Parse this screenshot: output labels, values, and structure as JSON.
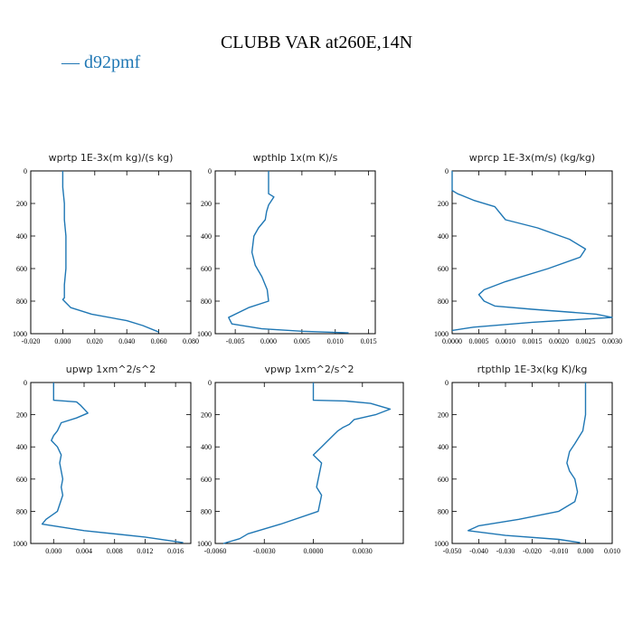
{
  "title": "CLUBB VAR at260E,14N",
  "legend": {
    "label": "d92pmf",
    "color": "#1f77b4"
  },
  "chart_data": [
    {
      "type": "line",
      "title": "wprtp   1E-3x(m kg)/(s kg)",
      "xlim": [
        -0.02,
        0.08
      ],
      "ylim": [
        1000,
        0
      ],
      "xticks": [
        -0.02,
        0.0,
        0.02,
        0.04,
        0.06,
        0.08
      ],
      "xtick_labels": [
        "-0.020",
        "0.000",
        "0.020",
        "0.040",
        "0.060",
        "0.080"
      ],
      "yticks": [
        0,
        200,
        400,
        600,
        800,
        1000
      ],
      "ytick_labels": [
        "0",
        "200",
        "400",
        "600",
        "800",
        "1000"
      ],
      "series": [
        {
          "color": "#1f77b4",
          "x": [
            0.0,
            0.0,
            0.001,
            0.001,
            0.002,
            0.002,
            0.002,
            0.001,
            0.001,
            0.0,
            0.005,
            0.018,
            0.04,
            0.05,
            0.06
          ],
          "y": [
            0,
            100,
            200,
            300,
            400,
            500,
            600,
            700,
            780,
            790,
            840,
            880,
            920,
            950,
            990
          ]
        }
      ]
    },
    {
      "type": "line",
      "title": "wpthlp   1x(m K)/s",
      "xlim": [
        -0.008,
        0.016
      ],
      "ylim": [
        1000,
        0
      ],
      "xticks": [
        -0.005,
        0.0,
        0.005,
        0.01,
        0.015
      ],
      "xtick_labels": [
        "-0.005",
        "0.000",
        "0.005",
        "0.010",
        "0.015"
      ],
      "yticks": [
        0,
        200,
        400,
        600,
        800,
        1000
      ],
      "ytick_labels": [
        "0",
        "200",
        "400",
        "600",
        "800",
        "1000"
      ],
      "series": [
        {
          "color": "#1f77b4",
          "x": [
            0.0,
            0.0,
            0.0008,
            0.0,
            -0.0003,
            -0.0005,
            -0.0015,
            -0.0022,
            -0.0025,
            -0.002,
            -0.001,
            -0.0002,
            0.0,
            -0.003,
            -0.006,
            -0.0055,
            -0.001,
            0.005,
            0.012
          ],
          "y": [
            0,
            140,
            160,
            210,
            250,
            300,
            350,
            400,
            500,
            580,
            650,
            730,
            800,
            840,
            900,
            940,
            970,
            985,
            995
          ]
        }
      ]
    },
    {
      "type": "line",
      "title": "wprcp   1E-3x(m/s) (kg/kg)",
      "xlim": [
        0.0,
        0.003
      ],
      "ylim": [
        1000,
        0
      ],
      "xticks": [
        0.0,
        0.0005,
        0.001,
        0.0015,
        0.002,
        0.0025,
        0.003
      ],
      "xtick_labels": [
        "0.0000",
        "0.0005",
        "0.0010",
        "0.0015",
        "0.0020",
        "0.0025",
        "0.0030"
      ],
      "yticks": [
        0,
        200,
        400,
        600,
        800,
        1000
      ],
      "ytick_labels": [
        "0",
        "200",
        "400",
        "600",
        "800",
        "1000"
      ],
      "series": [
        {
          "color": "#1f77b4",
          "x": [
            0.0,
            0.0,
            0.0001,
            0.0004,
            0.0008,
            0.001,
            0.0016,
            0.0022,
            0.0025,
            0.0024,
            0.0018,
            0.001,
            0.0006,
            0.0005,
            0.0006,
            0.0008,
            0.0015,
            0.0027,
            0.003,
            0.0015,
            0.0004,
            0.0
          ],
          "y": [
            0,
            120,
            140,
            180,
            220,
            300,
            350,
            420,
            480,
            530,
            600,
            680,
            730,
            760,
            800,
            830,
            850,
            880,
            900,
            930,
            960,
            980
          ]
        }
      ]
    },
    {
      "type": "line",
      "title": "upwp   1xm^2/s^2",
      "xlim": [
        -0.003,
        0.018
      ],
      "ylim": [
        1000,
        0
      ],
      "xticks": [
        0.0,
        0.004,
        0.008,
        0.012,
        0.016
      ],
      "xtick_labels": [
        "0.000",
        "0.004",
        "0.008",
        "0.012",
        "0.016"
      ],
      "yticks": [
        0,
        200,
        400,
        600,
        800,
        1000
      ],
      "ytick_labels": [
        "0",
        "200",
        "400",
        "600",
        "800",
        "1000"
      ],
      "series": [
        {
          "color": "#1f77b4",
          "x": [
            0.0,
            0.0,
            0.003,
            0.0035,
            0.0045,
            0.003,
            0.001,
            0.0005,
            0.0,
            -0.0003,
            0.0005,
            0.001,
            0.0008,
            0.0012,
            0.001,
            0.0012,
            0.0005,
            -0.001,
            -0.0015,
            0.004,
            0.012,
            0.017
          ],
          "y": [
            0,
            110,
            120,
            140,
            190,
            220,
            250,
            300,
            330,
            360,
            400,
            450,
            500,
            600,
            650,
            700,
            800,
            850,
            880,
            920,
            960,
            995
          ]
        }
      ]
    },
    {
      "type": "line",
      "title": "vpwp   1xm^2/s^2",
      "xlim": [
        -0.006,
        0.0055
      ],
      "ylim": [
        1000,
        0
      ],
      "xticks": [
        -0.006,
        -0.003,
        0.0,
        0.003
      ],
      "xtick_labels": [
        "-0.0060",
        "-0.0030",
        "0.0000",
        "0.0030"
      ],
      "yticks": [
        0,
        200,
        400,
        600,
        800,
        1000
      ],
      "ytick_labels": [
        "0",
        "200",
        "400",
        "600",
        "800",
        "1000"
      ],
      "series": [
        {
          "color": "#1f77b4",
          "x": [
            0.0,
            0.0,
            0.002,
            0.0035,
            0.0047,
            0.0038,
            0.0025,
            0.0022,
            0.0018,
            0.0015,
            0.0012,
            0.0005,
            0.0,
            0.0005,
            0.0003,
            0.0002,
            0.0005,
            0.0003,
            -0.002,
            -0.004,
            -0.0045,
            -0.0055
          ],
          "y": [
            0,
            110,
            115,
            130,
            165,
            200,
            230,
            260,
            280,
            300,
            330,
            400,
            450,
            500,
            600,
            650,
            700,
            800,
            880,
            940,
            970,
            1000
          ]
        }
      ]
    },
    {
      "type": "line",
      "title": "rtpthlp   1E-3x(kg K)/kg",
      "xlim": [
        -0.05,
        0.01
      ],
      "ylim": [
        1000,
        0
      ],
      "xticks": [
        -0.05,
        -0.04,
        -0.03,
        -0.02,
        -0.01,
        0.0,
        0.01
      ],
      "xtick_labels": [
        "-0.050",
        "-0.040",
        "-0.030",
        "-0.020",
        "-0.010",
        "0.000",
        "0.010"
      ],
      "yticks": [
        0,
        200,
        400,
        600,
        800,
        1000
      ],
      "ytick_labels": [
        "0",
        "200",
        "400",
        "600",
        "800",
        "1000"
      ],
      "series": [
        {
          "color": "#1f77b4",
          "x": [
            0.0,
            0.0,
            -0.001,
            -0.004,
            -0.006,
            -0.007,
            -0.006,
            -0.004,
            -0.003,
            -0.004,
            -0.01,
            -0.025,
            -0.04,
            -0.044,
            -0.03,
            -0.01,
            -0.002
          ],
          "y": [
            0,
            200,
            300,
            380,
            430,
            500,
            550,
            600,
            680,
            740,
            800,
            850,
            890,
            920,
            950,
            975,
            995
          ]
        }
      ]
    }
  ]
}
